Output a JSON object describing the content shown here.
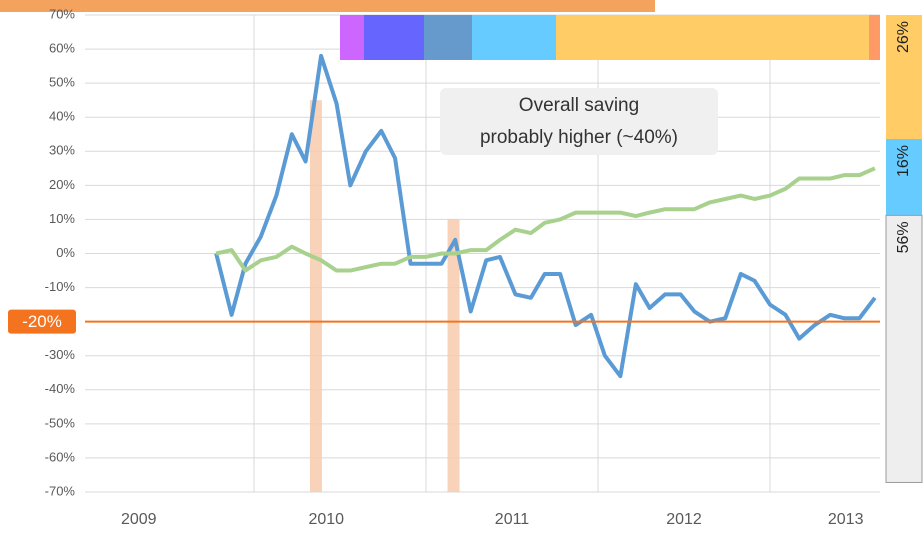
{
  "chart_data": {
    "type": "line",
    "xlim": [
      2009,
      2013.65
    ],
    "ylim": [
      -70,
      70
    ],
    "yticks": [
      {
        "value": 70,
        "label": "70%"
      },
      {
        "value": 60,
        "label": "60%"
      },
      {
        "value": 50,
        "label": "50%"
      },
      {
        "value": 40,
        "label": "40%"
      },
      {
        "value": 30,
        "label": "30%"
      },
      {
        "value": 20,
        "label": "20%"
      },
      {
        "value": 10,
        "label": "10%"
      },
      {
        "value": 0,
        "label": "0%"
      },
      {
        "value": -10,
        "label": "-10%"
      },
      {
        "value": -20,
        "label": "-20%"
      },
      {
        "value": -30,
        "label": "-30%"
      },
      {
        "value": -40,
        "label": "-40%"
      },
      {
        "value": -50,
        "label": "-50%"
      },
      {
        "value": -60,
        "label": "-60%"
      },
      {
        "value": -70,
        "label": "-70%"
      }
    ],
    "xticks": [
      {
        "value": 2009.33,
        "label": "2009"
      },
      {
        "value": 2010.42,
        "label": "2010"
      },
      {
        "value": 2011.5,
        "label": "2011"
      },
      {
        "value": 2012.5,
        "label": "2012"
      },
      {
        "value": 2013.44,
        "label": "2013"
      }
    ],
    "xgrid": [
      2010,
      2011,
      2012,
      2013
    ],
    "grid": true,
    "x": [
      2009.78,
      2009.87,
      2009.95,
      2010.04,
      2010.13,
      2010.22,
      2010.3,
      2010.39,
      2010.48,
      2010.56,
      2010.65,
      2010.74,
      2010.82,
      2010.91,
      2011.0,
      2011.09,
      2011.17,
      2011.26,
      2011.35,
      2011.43,
      2011.52,
      2011.61,
      2011.69,
      2011.78,
      2011.87,
      2011.96,
      2012.04,
      2012.13,
      2012.22,
      2012.3,
      2012.39,
      2012.48,
      2012.56,
      2012.65,
      2012.74,
      2012.83,
      2012.91,
      2013.0,
      2013.09,
      2013.17,
      2013.26,
      2013.35,
      2013.43,
      2013.52,
      2013.61
    ],
    "series": [
      {
        "color": "#5b9bd5",
        "values": [
          0,
          -18,
          -3,
          5,
          17,
          35,
          27,
          58,
          44,
          20,
          30,
          36,
          28,
          -3,
          -3,
          -3,
          4,
          -17,
          -2,
          -1,
          -12,
          -13,
          -6,
          -6,
          -21,
          -18,
          -30,
          -36,
          -9,
          -16,
          -12,
          -12,
          -17,
          -20,
          -19,
          -6,
          -8,
          -15,
          -18,
          -25,
          -21,
          -18,
          -19,
          -19,
          -13
        ]
      },
      {
        "color": "#a9d18e",
        "values": [
          0,
          1,
          -5,
          -2,
          -1,
          2,
          0,
          -2,
          -5,
          -5,
          -4,
          -3,
          -3,
          -1,
          -1,
          0,
          0,
          1,
          1,
          4,
          7,
          6,
          9,
          10,
          12,
          12,
          12,
          12,
          11,
          12,
          13,
          13,
          13,
          15,
          16,
          17,
          16,
          17,
          19,
          22,
          22,
          22,
          23,
          23,
          25
        ]
      }
    ],
    "bars": {
      "x": [
        2010.36,
        2011.16
      ],
      "values": [
        45,
        10
      ],
      "color": "#f8cbad"
    },
    "reference_line": {
      "value": -20,
      "label": "-20%",
      "color": "#f4731f"
    },
    "annotation": [
      "Overall saving",
      "probably higher (~40%)"
    ],
    "share_bar": {
      "values": [
        26,
        16,
        56
      ],
      "value_labels": [
        "26%",
        "16%",
        "56%"
      ],
      "colors": [
        "#ffcc66",
        "#66ccff",
        "#eeeeee"
      ]
    }
  }
}
